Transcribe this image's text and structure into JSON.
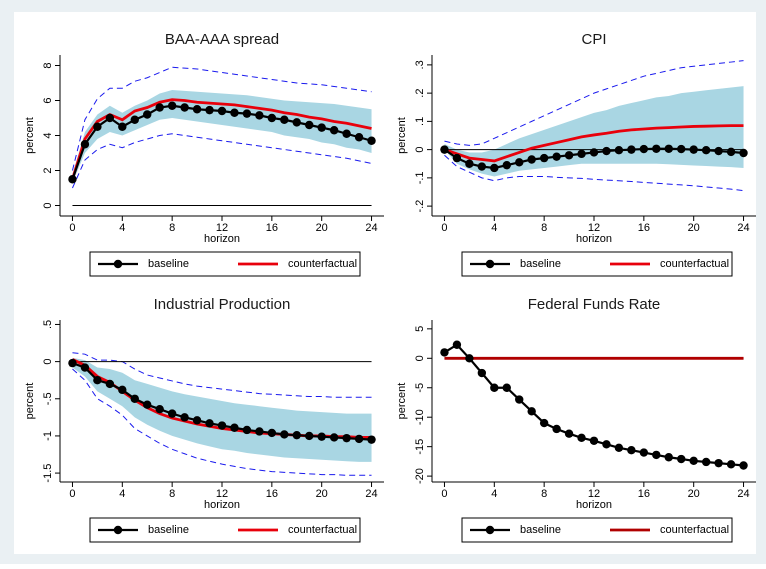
{
  "chart_data": [
    {
      "type": "line",
      "title": "BAA-AAA spread",
      "ylabel": "percent",
      "xlabel": "horizon",
      "x": [
        0,
        1,
        2,
        3,
        4,
        5,
        6,
        7,
        8,
        9,
        10,
        11,
        12,
        13,
        14,
        15,
        16,
        17,
        18,
        19,
        20,
        21,
        22,
        23,
        24
      ],
      "xlim": [
        -1,
        25
      ],
      "xticks": [
        0,
        4,
        8,
        12,
        16,
        20,
        24
      ],
      "ylim": [
        -0.6,
        8.6
      ],
      "yticks": [
        0,
        2,
        4,
        6,
        8
      ],
      "hline": 0,
      "hline_color": "#000000",
      "bands": [
        {
          "style": "fill",
          "color": "#a9d6e3",
          "lower": [
            1.3,
            3.0,
            3.8,
            4.2,
            4.0,
            4.3,
            4.6,
            4.9,
            5.0,
            4.9,
            4.8,
            4.7,
            4.6,
            4.5,
            4.4,
            4.3,
            4.2,
            4.0,
            3.9,
            3.8,
            3.6,
            3.5,
            3.3,
            3.2,
            3.0
          ],
          "upper": [
            1.8,
            4.2,
            5.2,
            5.7,
            5.3,
            5.7,
            6.0,
            6.4,
            6.6,
            6.55,
            6.5,
            6.45,
            6.4,
            6.35,
            6.3,
            6.2,
            6.1,
            6.0,
            5.95,
            5.9,
            5.85,
            5.8,
            5.7,
            5.6,
            5.5
          ]
        },
        {
          "style": "dashed",
          "color": "#1a1aee",
          "lower": [
            1.0,
            2.6,
            3.2,
            3.5,
            3.3,
            3.6,
            3.8,
            4.0,
            4.1,
            4.0,
            3.9,
            3.8,
            3.7,
            3.6,
            3.5,
            3.4,
            3.3,
            3.2,
            3.1,
            3.0,
            2.9,
            2.8,
            2.7,
            2.55,
            2.4
          ],
          "upper": [
            2.0,
            4.9,
            6.1,
            6.7,
            6.7,
            7.1,
            7.3,
            7.6,
            7.9,
            7.85,
            7.8,
            7.7,
            7.6,
            7.5,
            7.4,
            7.3,
            7.2,
            7.1,
            7.0,
            6.95,
            6.9,
            6.8,
            6.7,
            6.6,
            6.5
          ]
        }
      ],
      "series": [
        {
          "name": "baseline",
          "color": "#000000",
          "markers": true,
          "values": [
            1.5,
            3.5,
            4.5,
            5.0,
            4.5,
            4.9,
            5.2,
            5.6,
            5.7,
            5.6,
            5.5,
            5.45,
            5.4,
            5.3,
            5.25,
            5.15,
            5.0,
            4.9,
            4.75,
            4.6,
            4.45,
            4.3,
            4.1,
            3.9,
            3.7
          ]
        },
        {
          "name": "counterfactual",
          "color": "#e8000b",
          "markers": false,
          "values": [
            1.5,
            3.8,
            4.8,
            5.2,
            4.9,
            5.4,
            5.6,
            5.9,
            6.05,
            6.0,
            5.9,
            5.85,
            5.8,
            5.75,
            5.65,
            5.55,
            5.45,
            5.3,
            5.2,
            5.05,
            4.95,
            4.8,
            4.7,
            4.55,
            4.4
          ]
        }
      ]
    },
    {
      "type": "line",
      "title": "CPI",
      "ylabel": "percent",
      "xlabel": "horizon",
      "x": [
        0,
        1,
        2,
        3,
        4,
        5,
        6,
        7,
        8,
        9,
        10,
        11,
        12,
        13,
        14,
        15,
        16,
        17,
        18,
        19,
        20,
        21,
        22,
        23,
        24
      ],
      "xlim": [
        -1,
        25
      ],
      "xticks": [
        0,
        4,
        8,
        12,
        16,
        20,
        24
      ],
      "ylim": [
        -0.235,
        0.335
      ],
      "yticks": [
        {
          "value": -0.2,
          "label": "-.2"
        },
        {
          "value": -0.1,
          "label": "-.1"
        },
        0,
        {
          "value": 0.1,
          "label": ".1"
        },
        {
          "value": 0.2,
          "label": ".2"
        },
        {
          "value": 0.3,
          "label": ".3"
        }
      ],
      "hline": 0,
      "hline_color": "#000000",
      "bands": [
        {
          "style": "fill",
          "color": "#a9d6e3",
          "lower": [
            0,
            -0.05,
            -0.07,
            -0.085,
            -0.095,
            -0.085,
            -0.075,
            -0.07,
            -0.065,
            -0.06,
            -0.055,
            -0.05,
            -0.05,
            -0.05,
            -0.05,
            -0.05,
            -0.05,
            -0.05,
            -0.052,
            -0.054,
            -0.056,
            -0.058,
            -0.06,
            -0.062,
            -0.065
          ],
          "upper": [
            0.02,
            0.0,
            -0.01,
            -0.01,
            0.0,
            0.02,
            0.04,
            0.055,
            0.07,
            0.085,
            0.1,
            0.115,
            0.13,
            0.14,
            0.155,
            0.165,
            0.175,
            0.185,
            0.19,
            0.2,
            0.205,
            0.21,
            0.215,
            0.22,
            0.225
          ]
        },
        {
          "style": "dashed",
          "color": "#1a1aee",
          "lower": [
            -0.02,
            -0.06,
            -0.08,
            -0.1,
            -0.11,
            -0.1,
            -0.095,
            -0.095,
            -0.095,
            -0.098,
            -0.1,
            -0.102,
            -0.105,
            -0.108,
            -0.11,
            -0.113,
            -0.116,
            -0.119,
            -0.122,
            -0.125,
            -0.128,
            -0.132,
            -0.136,
            -0.14,
            -0.145
          ],
          "upper": [
            0.03,
            0.02,
            0.015,
            0.02,
            0.04,
            0.06,
            0.08,
            0.1,
            0.12,
            0.14,
            0.16,
            0.18,
            0.2,
            0.215,
            0.23,
            0.245,
            0.26,
            0.27,
            0.28,
            0.29,
            0.295,
            0.3,
            0.305,
            0.31,
            0.315
          ]
        }
      ],
      "series": [
        {
          "name": "baseline",
          "color": "#000000",
          "markers": true,
          "values": [
            0,
            -0.03,
            -0.05,
            -0.06,
            -0.065,
            -0.055,
            -0.045,
            -0.035,
            -0.03,
            -0.025,
            -0.02,
            -0.015,
            -0.01,
            -0.005,
            -0.002,
            0.0,
            0.002,
            0.003,
            0.003,
            0.002,
            0.0,
            -0.002,
            -0.005,
            -0.008,
            -0.012
          ]
        },
        {
          "name": "counterfactual",
          "color": "#e8000b",
          "markers": false,
          "values": [
            0,
            -0.015,
            -0.03,
            -0.035,
            -0.04,
            -0.025,
            -0.01,
            0.005,
            0.015,
            0.025,
            0.035,
            0.045,
            0.052,
            0.058,
            0.065,
            0.07,
            0.073,
            0.076,
            0.078,
            0.08,
            0.082,
            0.083,
            0.084,
            0.085,
            0.085
          ]
        }
      ]
    },
    {
      "type": "line",
      "title": "Industrial Production",
      "ylabel": "percent",
      "xlabel": "horizon",
      "x": [
        0,
        1,
        2,
        3,
        4,
        5,
        6,
        7,
        8,
        9,
        10,
        11,
        12,
        13,
        14,
        15,
        16,
        17,
        18,
        19,
        20,
        21,
        22,
        23,
        24
      ],
      "xlim": [
        -1,
        25
      ],
      "xticks": [
        0,
        4,
        8,
        12,
        16,
        20,
        24
      ],
      "ylim": [
        -1.62,
        0.56
      ],
      "yticks": [
        -1.5,
        -1,
        {
          "value": -0.5,
          "label": "-.5"
        },
        0,
        {
          "value": 0.5,
          "label": ".5"
        }
      ],
      "hline": 0,
      "hline_color": "#000000",
      "bands": [
        {
          "style": "fill",
          "color": "#a9d6e3",
          "lower": [
            -0.08,
            -0.2,
            -0.4,
            -0.5,
            -0.6,
            -0.75,
            -0.85,
            -0.93,
            -1.0,
            -1.05,
            -1.1,
            -1.14,
            -1.18,
            -1.2,
            -1.23,
            -1.25,
            -1.27,
            -1.29,
            -1.3,
            -1.31,
            -1.32,
            -1.33,
            -1.34,
            -1.35,
            -1.35
          ],
          "upper": [
            0.05,
            0.02,
            -0.08,
            -0.1,
            -0.15,
            -0.25,
            -0.3,
            -0.35,
            -0.4,
            -0.44,
            -0.47,
            -0.5,
            -0.53,
            -0.56,
            -0.58,
            -0.6,
            -0.62,
            -0.64,
            -0.66,
            -0.67,
            -0.68,
            -0.69,
            -0.7,
            -0.7,
            -0.7
          ]
        },
        {
          "style": "dashed",
          "color": "#1a1aee",
          "lower": [
            -0.1,
            -0.25,
            -0.5,
            -0.6,
            -0.72,
            -0.9,
            -1.0,
            -1.1,
            -1.18,
            -1.24,
            -1.3,
            -1.34,
            -1.38,
            -1.41,
            -1.44,
            -1.46,
            -1.48,
            -1.49,
            -1.5,
            -1.51,
            -1.52,
            -1.52,
            -1.53,
            -1.53,
            -1.53
          ],
          "upper": [
            0.12,
            0.1,
            0.02,
            0.02,
            0.0,
            -0.1,
            -0.18,
            -0.22,
            -0.26,
            -0.3,
            -0.33,
            -0.35,
            -0.37,
            -0.39,
            -0.41,
            -0.43,
            -0.44,
            -0.45,
            -0.46,
            -0.47,
            -0.47,
            -0.48,
            -0.48,
            -0.48,
            -0.48
          ]
        }
      ],
      "series": [
        {
          "name": "baseline",
          "color": "#000000",
          "markers": true,
          "values": [
            -0.02,
            -0.08,
            -0.25,
            -0.3,
            -0.38,
            -0.5,
            -0.58,
            -0.64,
            -0.7,
            -0.75,
            -0.79,
            -0.83,
            -0.86,
            -0.89,
            -0.92,
            -0.94,
            -0.96,
            -0.98,
            -0.99,
            -1.0,
            -1.01,
            -1.02,
            -1.03,
            -1.04,
            -1.05
          ]
        },
        {
          "name": "counterfactual",
          "color": "#e8000b",
          "markers": false,
          "values": [
            0.03,
            -0.05,
            -0.2,
            -0.28,
            -0.4,
            -0.52,
            -0.62,
            -0.7,
            -0.76,
            -0.8,
            -0.84,
            -0.87,
            -0.9,
            -0.92,
            -0.94,
            -0.96,
            -0.97,
            -0.98,
            -0.99,
            -1.0,
            -1.0,
            -1.01,
            -1.01,
            -1.02,
            -1.02
          ]
        }
      ]
    },
    {
      "type": "line",
      "title": "Federal Funds Rate",
      "ylabel": "percent",
      "xlabel": "horizon",
      "x": [
        0,
        1,
        2,
        3,
        4,
        5,
        6,
        7,
        8,
        9,
        10,
        11,
        12,
        13,
        14,
        15,
        16,
        17,
        18,
        19,
        20,
        21,
        22,
        23,
        24
      ],
      "xlim": [
        -1,
        25
      ],
      "xticks": [
        0,
        4,
        8,
        12,
        16,
        20,
        24
      ],
      "ylim": [
        -21,
        6.5
      ],
      "yticks": [
        -20,
        -15,
        -10,
        -5,
        0,
        5
      ],
      "hline": 0,
      "hline_color": "#000000",
      "bands": [],
      "series": [
        {
          "name": "baseline",
          "color": "#000000",
          "markers": true,
          "values": [
            1,
            2.3,
            0,
            -2.5,
            -5,
            -5,
            -7,
            -9,
            -11,
            -12,
            -12.8,
            -13.5,
            -14,
            -14.6,
            -15.2,
            -15.6,
            -16,
            -16.4,
            -16.8,
            -17.1,
            -17.4,
            -17.6,
            -17.8,
            -18,
            -18.2
          ]
        },
        {
          "name": "counterfactual",
          "color": "#b00000",
          "markers": false,
          "values": [
            0,
            0,
            0,
            0,
            0,
            0,
            0,
            0,
            0,
            0,
            0,
            0,
            0,
            0,
            0,
            0,
            0,
            0,
            0,
            0,
            0,
            0,
            0,
            0,
            0
          ]
        }
      ]
    }
  ]
}
